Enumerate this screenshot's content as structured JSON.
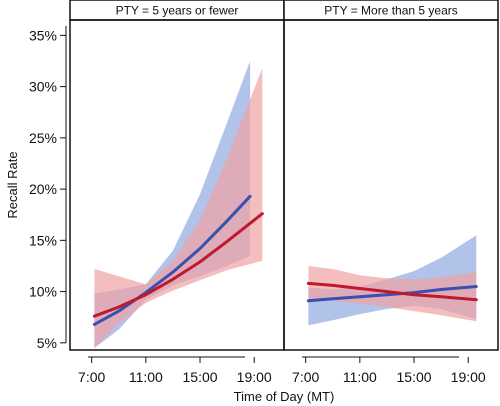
{
  "chart_data": {
    "type": "line",
    "xlabel": "Time of Day (MT)",
    "ylabel": "Recall Rate",
    "x_ticks": [
      7,
      11,
      15,
      19
    ],
    "x_tick_labels": [
      "7:00",
      "11:00",
      "15:00",
      "19:00"
    ],
    "xlim": [
      5.4,
      21.2
    ],
    "ylim": [
      4.3,
      36.5
    ],
    "y_ticks": [
      5,
      10,
      15,
      20,
      25,
      30,
      35
    ],
    "y_tick_labels": [
      "5%",
      "10%",
      "15%",
      "20%",
      "25%",
      "30%",
      "35%"
    ],
    "grid": false,
    "legend": "none",
    "colors": {
      "blue": "#3a4fb0",
      "red": "#c0182c",
      "blue_band": "#9fb4e4",
      "red_band": "#f0a3a3"
    },
    "panels": [
      {
        "title": "PTY = 5 years or fewer",
        "series": [
          {
            "color": "blue",
            "x": [
              7.2,
              9.0,
              11.0,
              13.0,
              15.0,
              17.0,
              18.7
            ],
            "y": [
              6.8,
              8.1,
              9.9,
              11.9,
              14.2,
              16.9,
              19.3
            ],
            "lower": [
              4.5,
              6.3,
              9.2,
              10.6,
              11.5,
              12.5,
              13.5
            ],
            "upper": [
              9.8,
              10.2,
              10.7,
              14.0,
              19.5,
              26.5,
              32.5
            ]
          },
          {
            "color": "red",
            "x": [
              7.2,
              9.0,
              11.0,
              13.0,
              15.0,
              17.0,
              19.6
            ],
            "y": [
              7.6,
              8.5,
              9.7,
              11.2,
              12.9,
              14.9,
              17.6
            ],
            "lower": [
              4.5,
              6.9,
              8.9,
              10.1,
              11.1,
              12.1,
              13.0
            ],
            "upper": [
              12.2,
              11.5,
              10.7,
              13.0,
              17.0,
              23.0,
              31.8
            ]
          }
        ]
      },
      {
        "title": "PTY = More than 5 years",
        "series": [
          {
            "color": "blue",
            "x": [
              7.2,
              9.0,
              11.0,
              13.0,
              15.0,
              17.0,
              19.6
            ],
            "y": [
              9.1,
              9.3,
              9.5,
              9.7,
              9.9,
              10.2,
              10.5
            ],
            "lower": [
              6.7,
              7.2,
              7.8,
              8.3,
              8.6,
              8.3,
              7.3
            ],
            "upper": [
              10.4,
              10.2,
              10.5,
              11.2,
              12.0,
              13.3,
              15.5
            ]
          },
          {
            "color": "red",
            "x": [
              7.2,
              9.0,
              11.0,
              13.0,
              15.0,
              17.0,
              19.6
            ],
            "y": [
              10.8,
              10.6,
              10.3,
              10.0,
              9.7,
              9.5,
              9.2
            ],
            "lower": [
              9.3,
              9.1,
              8.8,
              8.5,
              8.1,
              7.7,
              7.1
            ],
            "upper": [
              12.5,
              12.2,
              11.6,
              11.3,
              11.2,
              11.4,
              11.9
            ]
          }
        ]
      }
    ]
  }
}
